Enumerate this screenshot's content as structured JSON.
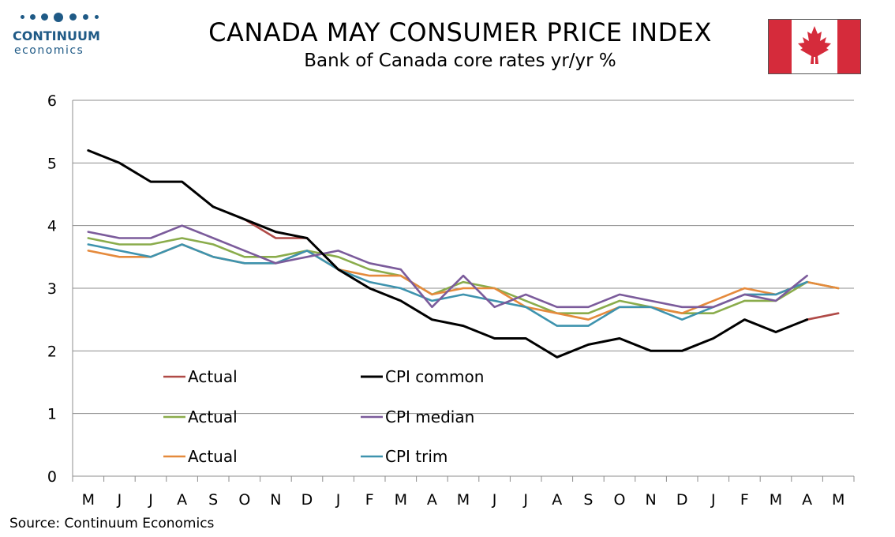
{
  "header": {
    "logo_name": "CONTINUUM",
    "logo_sub": "economics",
    "title": "CANADA MAY CONSUMER PRICE INDEX",
    "subtitle": "Bank of Canada core rates yr/yr %",
    "flag_icon": "canada-flag-icon"
  },
  "source": "Source: Continuum Economics",
  "colors": {
    "common_actual": "#b04a47",
    "common": "#000000",
    "median_actual": "#8aac4b",
    "median": "#7b5b9b",
    "trim_actual": "#e58a3c",
    "trim": "#3e93ae",
    "logo": "#1f5a86",
    "flag_red": "#d52b3b"
  },
  "chart_data": {
    "type": "line",
    "categories": [
      "M",
      "J",
      "J",
      "A",
      "S",
      "O",
      "N",
      "D",
      "J",
      "F",
      "M",
      "A",
      "M",
      "J",
      "J",
      "A",
      "S",
      "O",
      "N",
      "D",
      "J",
      "F",
      "M",
      "A",
      "M"
    ],
    "ylim": [
      0,
      6
    ],
    "yticks": [
      "0",
      "1",
      "2",
      "3",
      "4",
      "5",
      "6"
    ],
    "grid": true,
    "legend_position": "bottom-left inside plot",
    "series": [
      {
        "name": "Actual",
        "key": "common_actual",
        "values": [
          null,
          null,
          null,
          null,
          null,
          4.1,
          3.8,
          3.8,
          null,
          null,
          null,
          null,
          null,
          null,
          null,
          null,
          null,
          null,
          null,
          null,
          null,
          null,
          null,
          2.5,
          2.6
        ]
      },
      {
        "name": "CPI common",
        "key": "common",
        "values": [
          5.2,
          5.0,
          4.7,
          4.7,
          4.3,
          4.1,
          3.9,
          3.8,
          3.3,
          3.0,
          2.8,
          2.5,
          2.4,
          2.2,
          2.2,
          1.9,
          2.1,
          2.2,
          2.0,
          2.0,
          2.2,
          2.5,
          2.3,
          2.5,
          null
        ]
      },
      {
        "name": "Actual",
        "key": "median_actual",
        "values": [
          3.8,
          3.7,
          3.7,
          3.8,
          3.7,
          3.5,
          3.5,
          3.6,
          3.5,
          3.3,
          3.2,
          2.9,
          3.1,
          3.0,
          2.8,
          2.6,
          2.6,
          2.8,
          2.7,
          2.6,
          2.6,
          2.8,
          2.8,
          3.1,
          3.0
        ]
      },
      {
        "name": "CPI median",
        "key": "median",
        "values": [
          3.9,
          3.8,
          3.8,
          4.0,
          3.8,
          3.6,
          3.4,
          3.5,
          3.6,
          3.4,
          3.3,
          2.7,
          3.2,
          2.7,
          2.9,
          2.7,
          2.7,
          2.9,
          2.8,
          2.7,
          2.7,
          2.9,
          2.8,
          3.2,
          null
        ]
      },
      {
        "name": "Actual",
        "key": "trim_actual",
        "values": [
          3.6,
          3.5,
          3.5,
          3.7,
          3.5,
          3.4,
          3.4,
          3.6,
          3.3,
          3.2,
          3.2,
          2.9,
          3.0,
          3.0,
          2.7,
          2.6,
          2.5,
          2.7,
          2.7,
          2.6,
          2.8,
          3.0,
          2.9,
          3.1,
          3.0
        ]
      },
      {
        "name": "CPI trim",
        "key": "trim",
        "values": [
          3.7,
          3.6,
          3.5,
          3.7,
          3.5,
          3.4,
          3.4,
          3.6,
          3.3,
          3.1,
          3.0,
          2.8,
          2.9,
          2.8,
          2.7,
          2.4,
          2.4,
          2.7,
          2.7,
          2.5,
          2.7,
          2.9,
          2.9,
          3.1,
          null
        ]
      }
    ],
    "legend_order": [
      "common_actual",
      "common",
      "median_actual",
      "median",
      "trim_actual",
      "trim"
    ]
  }
}
